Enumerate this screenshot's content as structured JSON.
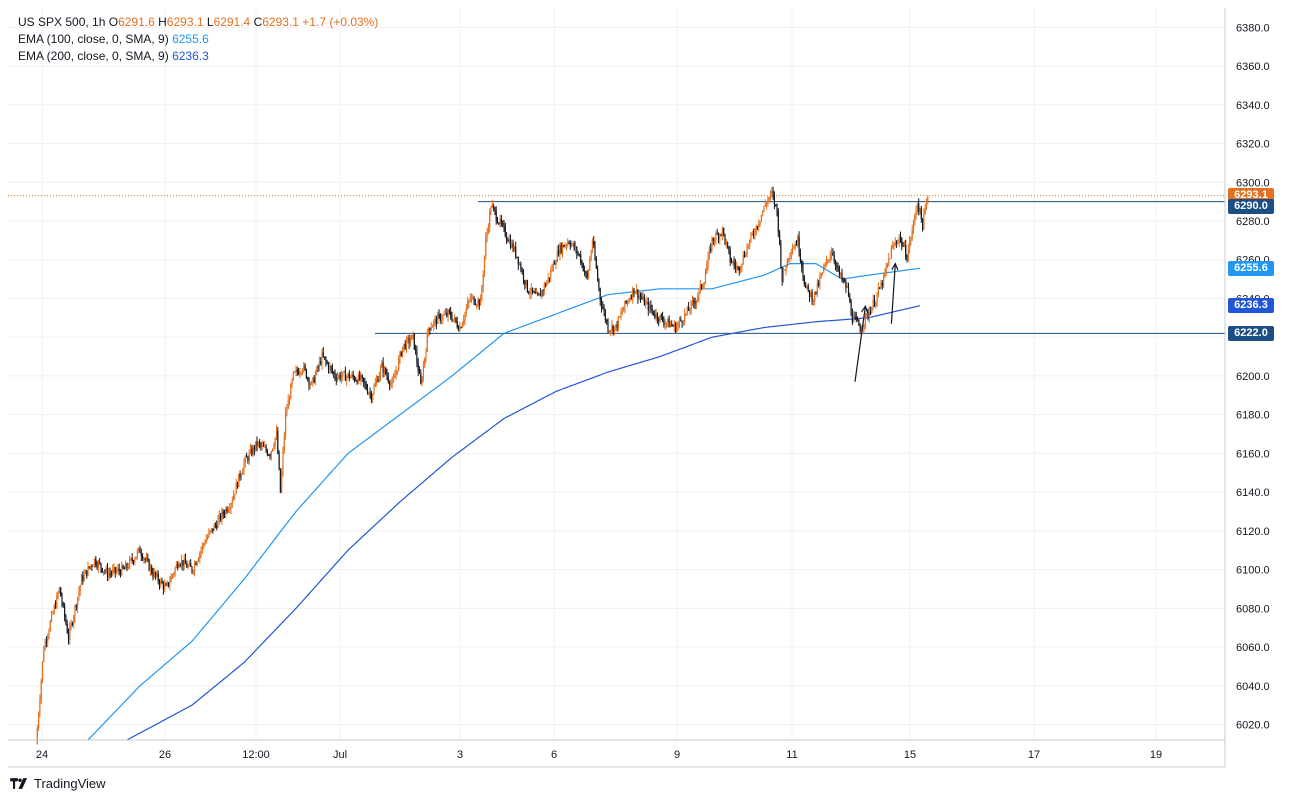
{
  "legend": {
    "symbol": "US SPX 500, 1h",
    "o_label": "O",
    "o_value": "6291.6",
    "h_label": "H",
    "h_value": "6293.1",
    "l_label": "L",
    "l_value": "6291.4",
    "c_label": "C",
    "c_value": "6293.1",
    "change": "+1.7 (+0.03%)",
    "ema100_label": "EMA (100, close, 0, SMA, 9)",
    "ema100_value": "6255.6",
    "ema200_label": "EMA (200, close, 0, SMA, 9)",
    "ema200_value": "6236.3"
  },
  "badges": {
    "last_price": "6293.1",
    "resistance": "6290.0",
    "ema100": "6255.6",
    "ema200": "6236.3",
    "support": "6222.0"
  },
  "colors": {
    "up": "#e4701e",
    "down": "#131722",
    "ema100": "#2196f3",
    "ema200": "#2156d4",
    "level": "#1c4e86",
    "grid": "#eef0f3",
    "axis_text": "#131722"
  },
  "branding": {
    "name": "TradingView"
  },
  "chart_data": {
    "type": "candlestick",
    "title": "US SPX 500, 1h",
    "ylim": [
      6012,
      6390
    ],
    "y_ticks": [
      "6020.0",
      "6040.0",
      "6060.0",
      "6080.0",
      "6100.0",
      "6120.0",
      "6140.0",
      "6160.0",
      "6180.0",
      "6200.0",
      "6220.0",
      "6240.0",
      "6260.0",
      "6280.0",
      "6300.0",
      "6320.0",
      "6340.0",
      "6360.0",
      "6380.0"
    ],
    "x_ticks": [
      "24",
      "26",
      "12:00",
      "Jul",
      "3",
      "6",
      "9",
      "11",
      "15",
      "17",
      "19"
    ],
    "horizontal_levels": [
      6290.0,
      6222.0
    ],
    "last_price": 6293.1,
    "price_path": [
      [
        0,
        6010
      ],
      [
        6,
        6060
      ],
      [
        12,
        6075
      ],
      [
        18,
        6090
      ],
      [
        25,
        6065
      ],
      [
        35,
        6095
      ],
      [
        45,
        6105
      ],
      [
        55,
        6098
      ],
      [
        68,
        6100
      ],
      [
        80,
        6110
      ],
      [
        90,
        6098
      ],
      [
        100,
        6090
      ],
      [
        110,
        6105
      ],
      [
        120,
        6100
      ],
      [
        130,
        6115
      ],
      [
        140,
        6125
      ],
      [
        150,
        6135
      ],
      [
        160,
        6155
      ],
      [
        170,
        6165
      ],
      [
        180,
        6160
      ],
      [
        185,
        6170
      ],
      [
        188,
        6140
      ],
      [
        192,
        6180
      ],
      [
        198,
        6200
      ],
      [
        205,
        6205
      ],
      [
        212,
        6195
      ],
      [
        220,
        6210
      ],
      [
        230,
        6200
      ],
      [
        240,
        6200
      ],
      [
        250,
        6198
      ],
      [
        258,
        6190
      ],
      [
        266,
        6205
      ],
      [
        274,
        6195
      ],
      [
        282,
        6215
      ],
      [
        290,
        6220
      ],
      [
        296,
        6195
      ],
      [
        302,
        6225
      ],
      [
        310,
        6230
      ],
      [
        318,
        6232
      ],
      [
        326,
        6225
      ],
      [
        334,
        6240
      ],
      [
        342,
        6238
      ],
      [
        346,
        6270
      ],
      [
        350,
        6288
      ],
      [
        356,
        6280
      ],
      [
        364,
        6270
      ],
      [
        370,
        6262
      ],
      [
        378,
        6245
      ],
      [
        386,
        6240
      ],
      [
        394,
        6250
      ],
      [
        402,
        6265
      ],
      [
        410,
        6270
      ],
      [
        418,
        6262
      ],
      [
        424,
        6250
      ],
      [
        428,
        6270
      ],
      [
        434,
        6240
      ],
      [
        440,
        6225
      ],
      [
        446,
        6225
      ],
      [
        452,
        6235
      ],
      [
        460,
        6245
      ],
      [
        468,
        6238
      ],
      [
        476,
        6232
      ],
      [
        484,
        6228
      ],
      [
        492,
        6225
      ],
      [
        500,
        6232
      ],
      [
        508,
        6240
      ],
      [
        514,
        6250
      ],
      [
        520,
        6270
      ],
      [
        528,
        6275
      ],
      [
        534,
        6260
      ],
      [
        540,
        6255
      ],
      [
        548,
        6268
      ],
      [
        556,
        6280
      ],
      [
        562,
        6290
      ],
      [
        566,
        6294
      ],
      [
        570,
        6285
      ],
      [
        574,
        6250
      ],
      [
        580,
        6265
      ],
      [
        586,
        6270
      ],
      [
        592,
        6245
      ],
      [
        598,
        6240
      ],
      [
        606,
        6255
      ],
      [
        612,
        6265
      ],
      [
        618,
        6252
      ],
      [
        624,
        6245
      ],
      [
        628,
        6230
      ],
      [
        634,
        6225
      ],
      [
        640,
        6232
      ],
      [
        646,
        6240
      ],
      [
        652,
        6250
      ],
      [
        658,
        6265
      ],
      [
        664,
        6272
      ],
      [
        670,
        6262
      ],
      [
        674,
        6275
      ],
      [
        678,
        6290
      ],
      [
        682,
        6278
      ],
      [
        686,
        6293
      ]
    ],
    "ema100_path": [
      [
        40,
        6012
      ],
      [
        80,
        6040
      ],
      [
        120,
        6063
      ],
      [
        160,
        6095
      ],
      [
        200,
        6130
      ],
      [
        240,
        6160
      ],
      [
        280,
        6180
      ],
      [
        320,
        6200
      ],
      [
        360,
        6222
      ],
      [
        400,
        6232
      ],
      [
        440,
        6242
      ],
      [
        480,
        6245
      ],
      [
        520,
        6245
      ],
      [
        560,
        6252
      ],
      [
        580,
        6258
      ],
      [
        600,
        6258
      ],
      [
        620,
        6250
      ],
      [
        640,
        6252
      ],
      [
        680,
        6255.6
      ]
    ],
    "ema200_path": [
      [
        70,
        6012
      ],
      [
        120,
        6030
      ],
      [
        160,
        6052
      ],
      [
        200,
        6080
      ],
      [
        240,
        6110
      ],
      [
        280,
        6135
      ],
      [
        320,
        6158
      ],
      [
        360,
        6178
      ],
      [
        400,
        6192
      ],
      [
        440,
        6202
      ],
      [
        480,
        6210
      ],
      [
        520,
        6220
      ],
      [
        560,
        6225
      ],
      [
        600,
        6228
      ],
      [
        640,
        6230
      ],
      [
        680,
        6236.3
      ]
    ],
    "arrows": [
      {
        "from": [
          630,
          6197
        ],
        "to": [
          638,
          6236
        ]
      },
      {
        "from": [
          658,
          6227
        ],
        "to": [
          661,
          6258
        ]
      }
    ]
  }
}
